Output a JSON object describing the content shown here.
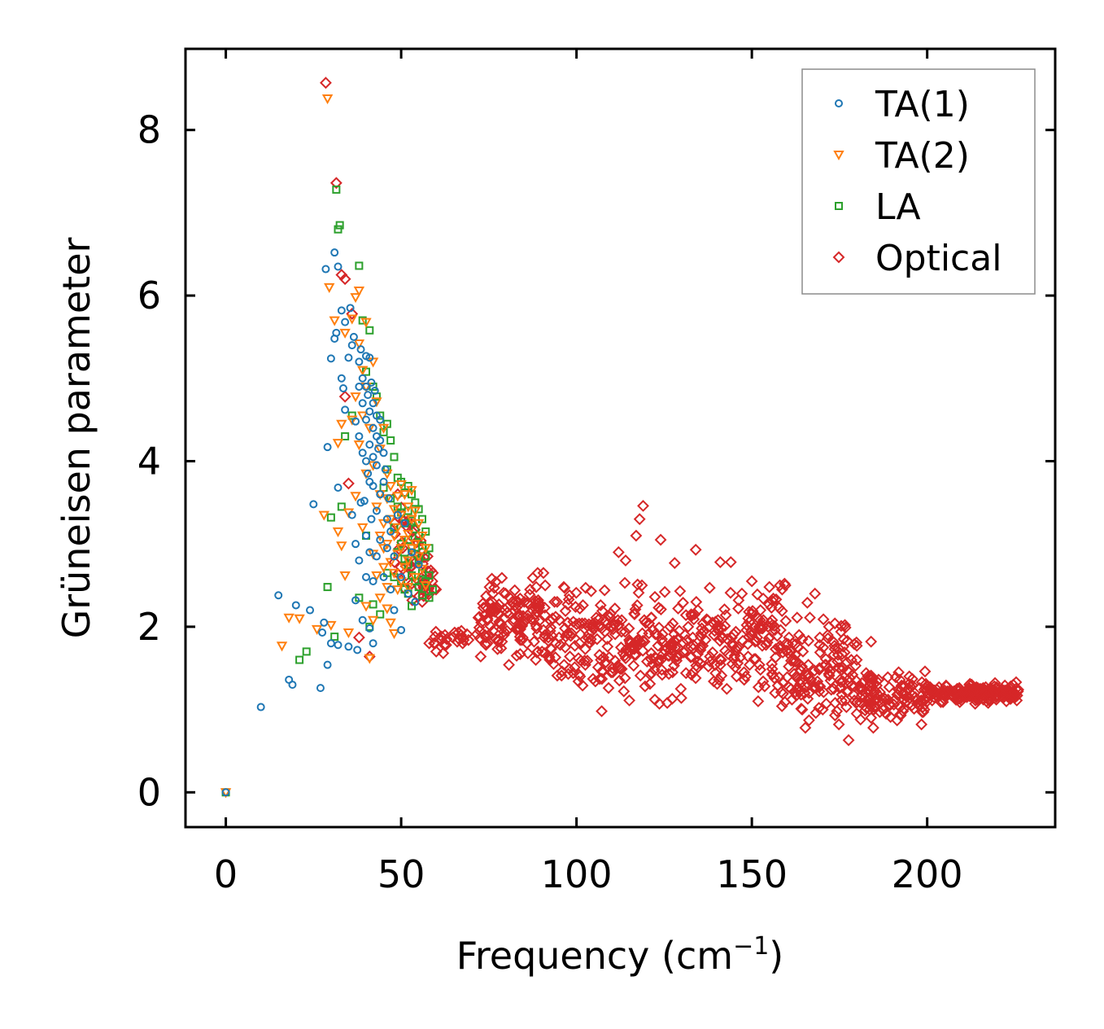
{
  "chart_data": {
    "type": "scatter",
    "title": "",
    "xlabel": "Frequency (cm",
    "xlabel_sup": "−1",
    "xlabel_close": ")",
    "ylabel": "Grüneisen parameter",
    "xlim": [
      -11.5,
      236.5
    ],
    "ylim": [
      -0.42,
      8.98
    ],
    "xticks": [
      0,
      50,
      100,
      150,
      200
    ],
    "xtick_labels": [
      "0",
      "50",
      "100",
      "150",
      "200"
    ],
    "yticks": [
      0,
      2,
      4,
      6,
      8
    ],
    "ytick_labels": [
      "0",
      "2",
      "4",
      "6",
      "8"
    ],
    "grid": false,
    "legend_position": "top-right",
    "series": [
      {
        "name": "TA(1)",
        "marker": "circle",
        "color": "#1f77b4",
        "points": [
          [
            0,
            0
          ],
          [
            10,
            1.03
          ],
          [
            15,
            2.38
          ],
          [
            18,
            1.36
          ],
          [
            19,
            1.3
          ],
          [
            20,
            2.26
          ],
          [
            24,
            2.2
          ],
          [
            25,
            3.48
          ],
          [
            27,
            1.26
          ],
          [
            27.5,
            1.93
          ],
          [
            28,
            2.05
          ],
          [
            28.5,
            6.32
          ],
          [
            29,
            1.54
          ],
          [
            29,
            4.17
          ],
          [
            30,
            1.8
          ],
          [
            30,
            5.24
          ],
          [
            31,
            6.52
          ],
          [
            31,
            5.48
          ],
          [
            31.5,
            5.55
          ],
          [
            32,
            6.35
          ],
          [
            32,
            1.78
          ],
          [
            32,
            3.68
          ],
          [
            33,
            5.82
          ],
          [
            33,
            5.0
          ],
          [
            33.5,
            4.88
          ],
          [
            34,
            5.68
          ],
          [
            34,
            4.62
          ],
          [
            35,
            5.25
          ],
          [
            35,
            1.76
          ],
          [
            35.5,
            5.85
          ],
          [
            36,
            5.4
          ],
          [
            36,
            3.35
          ],
          [
            36.5,
            5.5
          ],
          [
            37,
            4.48
          ],
          [
            37,
            3.0
          ],
          [
            37,
            2.32
          ],
          [
            37.5,
            1.72
          ],
          [
            38,
            5.2
          ],
          [
            38,
            4.9
          ],
          [
            38,
            4.3
          ],
          [
            38,
            2.8
          ],
          [
            38.5,
            5.35
          ],
          [
            38.5,
            3.5
          ],
          [
            39,
            5.0
          ],
          [
            39,
            4.7
          ],
          [
            39,
            4.1
          ],
          [
            39,
            2.08
          ],
          [
            39.5,
            3.52
          ],
          [
            40,
            5.27
          ],
          [
            40,
            4.9
          ],
          [
            40,
            4.5
          ],
          [
            40,
            4.0
          ],
          [
            40,
            3.1
          ],
          [
            40,
            2.6
          ],
          [
            40.5,
            4.8
          ],
          [
            40.5,
            3.85
          ],
          [
            41,
            5.25
          ],
          [
            41,
            4.6
          ],
          [
            41,
            4.2
          ],
          [
            41,
            3.75
          ],
          [
            41,
            2.9
          ],
          [
            41,
            1.98
          ],
          [
            41.5,
            4.95
          ],
          [
            41.5,
            3.3
          ],
          [
            42,
            4.7
          ],
          [
            42,
            4.4
          ],
          [
            42,
            4.05
          ],
          [
            42,
            3.7
          ],
          [
            42,
            2.55
          ],
          [
            42,
            1.8
          ],
          [
            42.5,
            4.85
          ],
          [
            43,
            4.55
          ],
          [
            43,
            4.3
          ],
          [
            43,
            3.95
          ],
          [
            43,
            3.4
          ],
          [
            43,
            2.85
          ],
          [
            43.5,
            4.15
          ],
          [
            44,
            4.5
          ],
          [
            44,
            4.25
          ],
          [
            44,
            3.6
          ],
          [
            44,
            3.05
          ],
          [
            45,
            4.1
          ],
          [
            45,
            3.75
          ],
          [
            45,
            2.6
          ],
          [
            45.5,
            3.9
          ],
          [
            46,
            3.3
          ],
          [
            46,
            2.95
          ],
          [
            46.5,
            3.55
          ],
          [
            47,
            3.15
          ],
          [
            47,
            2.45
          ],
          [
            48,
            2.85
          ],
          [
            48,
            2.2
          ],
          [
            49,
            3.35
          ],
          [
            50,
            2.6
          ],
          [
            50,
            1.96
          ],
          [
            51,
            3.25
          ],
          [
            52,
            2.4
          ],
          [
            53,
            2.9
          ],
          [
            54,
            2.3
          ],
          [
            55,
            2.75
          ]
        ]
      },
      {
        "name": "TA(2)",
        "marker": "triangle-down",
        "color": "#ff7f0e",
        "points": [
          [
            0,
            0
          ],
          [
            16,
            1.77
          ],
          [
            18,
            2.11
          ],
          [
            21,
            2.1
          ],
          [
            26,
            1.97
          ],
          [
            28,
            3.35
          ],
          [
            29,
            8.38
          ],
          [
            29.5,
            6.1
          ],
          [
            30,
            2.02
          ],
          [
            31,
            5.7
          ],
          [
            32,
            3.15
          ],
          [
            32,
            4.22
          ],
          [
            33,
            4.45
          ],
          [
            33,
            2.98
          ],
          [
            34,
            5.55
          ],
          [
            34,
            2.62
          ],
          [
            35,
            3.38
          ],
          [
            35,
            1.93
          ],
          [
            36,
            4.5
          ],
          [
            36,
            5.72
          ],
          [
            37,
            5.98
          ],
          [
            37,
            4.78
          ],
          [
            37,
            3.58
          ],
          [
            38,
            6.06
          ],
          [
            38,
            5.42
          ],
          [
            38,
            4.2
          ],
          [
            39,
            3.2
          ],
          [
            39,
            5.1
          ],
          [
            39,
            4.55
          ],
          [
            40,
            5.68
          ],
          [
            40,
            4.9
          ],
          [
            40,
            3.85
          ],
          [
            40,
            2.25
          ],
          [
            41,
            4.4
          ],
          [
            41,
            1.62
          ],
          [
            42,
            5.2
          ],
          [
            42,
            3.95
          ],
          [
            42,
            2.88
          ],
          [
            42,
            2.08
          ],
          [
            43,
            4.72
          ],
          [
            43,
            3.45
          ],
          [
            43,
            2.62
          ],
          [
            44,
            4.15
          ],
          [
            44,
            3.6
          ],
          [
            44,
            3.1
          ],
          [
            44,
            2.35
          ],
          [
            45,
            4.4
          ],
          [
            45,
            3.25
          ],
          [
            45,
            2.95
          ],
          [
            45,
            2.72
          ],
          [
            46,
            3.85
          ],
          [
            46,
            3.55
          ],
          [
            46,
            3.0
          ],
          [
            46,
            2.48
          ],
          [
            46,
            2.22
          ],
          [
            47,
            3.7
          ],
          [
            47,
            3.3
          ],
          [
            47,
            2.78
          ],
          [
            47,
            2.05
          ],
          [
            48,
            3.42
          ],
          [
            48,
            3.1
          ],
          [
            48,
            2.65
          ],
          [
            48,
            1.92
          ],
          [
            49,
            3.58
          ],
          [
            49,
            3.2
          ],
          [
            49,
            2.88
          ],
          [
            49,
            2.45
          ],
          [
            50,
            3.72
          ],
          [
            50,
            3.35
          ],
          [
            50,
            2.95
          ],
          [
            50,
            2.55
          ],
          [
            51,
            3.6
          ],
          [
            51,
            3.05
          ],
          [
            51,
            2.72
          ],
          [
            52,
            3.45
          ],
          [
            52,
            3.12
          ],
          [
            52,
            2.8
          ],
          [
            52,
            2.48
          ],
          [
            53,
            3.65
          ],
          [
            53,
            3.3
          ],
          [
            53,
            2.95
          ],
          [
            54,
            3.4
          ],
          [
            54,
            3.0
          ],
          [
            54,
            2.6
          ],
          [
            55,
            3.25
          ],
          [
            55,
            2.85
          ],
          [
            56,
            3.1
          ],
          [
            56,
            2.7
          ],
          [
            57,
            2.95
          ],
          [
            57,
            2.5
          ]
        ]
      },
      {
        "name": "LA",
        "marker": "square",
        "color": "#2ca02c",
        "points": [
          [
            0,
            0
          ],
          [
            21,
            1.6
          ],
          [
            23,
            1.7
          ],
          [
            29,
            2.48
          ],
          [
            30,
            3.32
          ],
          [
            31,
            1.88
          ],
          [
            31.5,
            7.28
          ],
          [
            32,
            6.8
          ],
          [
            32.5,
            6.85
          ],
          [
            33,
            3.45
          ],
          [
            34,
            4.3
          ],
          [
            36,
            4.55
          ],
          [
            38,
            6.36
          ],
          [
            38,
            2.35
          ],
          [
            39,
            5.7
          ],
          [
            40,
            3.1
          ],
          [
            40,
            5.08
          ],
          [
            41,
            5.58
          ],
          [
            41,
            2.0
          ],
          [
            42,
            4.9
          ],
          [
            42,
            2.27
          ],
          [
            43,
            4.78
          ],
          [
            44,
            4.55
          ],
          [
            44,
            2.15
          ],
          [
            45,
            4.35
          ],
          [
            45,
            3.68
          ],
          [
            46,
            4.45
          ],
          [
            46,
            3.9
          ],
          [
            46,
            2.65
          ],
          [
            47,
            4.25
          ],
          [
            47,
            3.55
          ],
          [
            48,
            4.05
          ],
          [
            48,
            3.2
          ],
          [
            48,
            2.6
          ],
          [
            49,
            3.8
          ],
          [
            49,
            3.45
          ],
          [
            49,
            2.9
          ],
          [
            50,
            3.75
          ],
          [
            50,
            3.38
          ],
          [
            50,
            3.0
          ],
          [
            50,
            2.55
          ],
          [
            51,
            3.62
          ],
          [
            51,
            3.25
          ],
          [
            51,
            2.82
          ],
          [
            51,
            2.45
          ],
          [
            52,
            3.7
          ],
          [
            52,
            3.4
          ],
          [
            52,
            3.05
          ],
          [
            52,
            2.75
          ],
          [
            52,
            2.4
          ],
          [
            53,
            3.6
          ],
          [
            53,
            3.28
          ],
          [
            53,
            2.95
          ],
          [
            53,
            2.62
          ],
          [
            53,
            2.25
          ],
          [
            54,
            3.5
          ],
          [
            54,
            3.18
          ],
          [
            54,
            2.88
          ],
          [
            54,
            2.55
          ],
          [
            55,
            3.42
          ],
          [
            55,
            3.1
          ],
          [
            55,
            2.8
          ],
          [
            55,
            2.48
          ],
          [
            56,
            3.3
          ],
          [
            56,
            2.98
          ],
          [
            56,
            2.65
          ],
          [
            56,
            2.38
          ],
          [
            57,
            3.15
          ],
          [
            57,
            2.85
          ],
          [
            57,
            2.55
          ],
          [
            58,
            2.95
          ],
          [
            58,
            2.62
          ],
          [
            58,
            2.35
          ],
          [
            59,
            2.45
          ]
        ]
      },
      {
        "name": "Optical",
        "marker": "diamond",
        "color": "#d62728",
        "points": []
      }
    ]
  },
  "legend": {
    "items": [
      {
        "label": "TA(1)",
        "marker": "circle",
        "color": "#1f77b4"
      },
      {
        "label": "TA(2)",
        "marker": "triangle-down",
        "color": "#ff7f0e"
      },
      {
        "label": "LA",
        "marker": "square",
        "color": "#2ca02c"
      },
      {
        "label": "Optical",
        "marker": "diamond",
        "color": "#d62728"
      }
    ]
  }
}
